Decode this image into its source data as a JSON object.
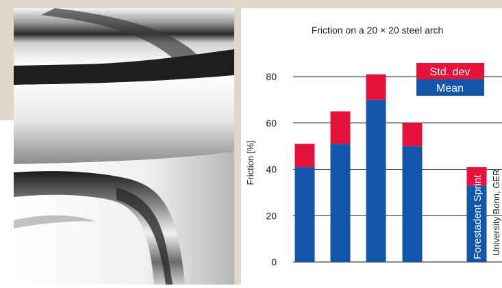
{
  "chart_data": {
    "type": "bar",
    "title": "Friction on a 20 × 20 steel arch",
    "ylabel": "Friction [%]",
    "xlabel": "",
    "ylim": [
      0,
      85
    ],
    "yticks": [
      0,
      20,
      40,
      60,
      80
    ],
    "grid": true,
    "legend_position": "top-right",
    "series": [
      {
        "name": "Mean",
        "color": "#1156a8",
        "values": [
          41,
          51,
          70,
          50,
          null,
          33
        ]
      },
      {
        "name": "Std. dev",
        "color": "#e5133b",
        "values": [
          10,
          14,
          11,
          10,
          null,
          8
        ]
      }
    ],
    "bar_labels": [
      "",
      "",
      "",
      "",
      "",
      "Forestadent Sprint"
    ],
    "side_note": "University Bonn, GER"
  }
}
